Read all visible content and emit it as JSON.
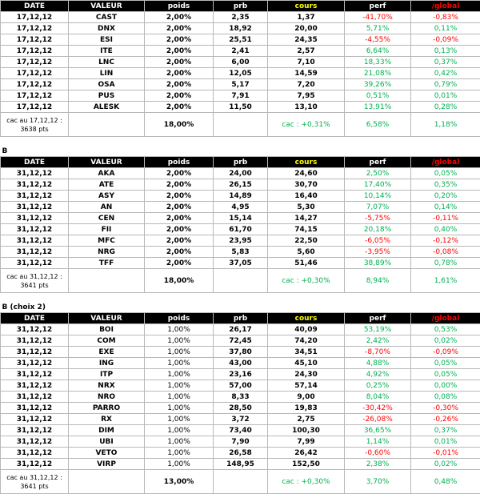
{
  "headers": [
    "DATE",
    "VALEUR",
    "poids",
    "prb",
    "cours",
    "perf",
    "/global"
  ],
  "sections": [
    {
      "title": "",
      "rows": [
        [
          "17,12,12",
          "CAST",
          "2,00%",
          "2,35",
          "1,37",
          "-41,70%",
          "-0,83%"
        ],
        [
          "17,12,12",
          "DNX",
          "2,00%",
          "18,92",
          "20,00",
          "5,71%",
          "0,11%"
        ],
        [
          "17,12,12",
          "ESI",
          "2,00%",
          "25,51",
          "24,35",
          "-4,55%",
          "-0,09%"
        ],
        [
          "17,12,12",
          "ITE",
          "2,00%",
          "2,41",
          "2,57",
          "6,64%",
          "0,13%"
        ],
        [
          "17,12,12",
          "LNC",
          "2,00%",
          "6,00",
          "7,10",
          "18,33%",
          "0,37%"
        ],
        [
          "17,12,12",
          "LIN",
          "2,00%",
          "12,05",
          "14,59",
          "21,08%",
          "0,42%"
        ],
        [
          "17,12,12",
          "OSA",
          "2,00%",
          "5,17",
          "7,20",
          "39,26%",
          "0,79%"
        ],
        [
          "17,12,12",
          "PUS",
          "2,00%",
          "7,91",
          "7,95",
          "0,51%",
          "0,01%"
        ],
        [
          "17,12,12",
          "ALESK",
          "2,00%",
          "11,50",
          "13,10",
          "13,91%",
          "0,28%"
        ]
      ],
      "summary": {
        "label": "cac au 17,12,12 : 3638 pts",
        "poids": "18,00%",
        "cac": "cac : +0,31%",
        "perf": "6,58%",
        "global": "1,18%"
      }
    },
    {
      "title": "B",
      "rows": [
        [
          "31,12,12",
          "AKA",
          "2,00%",
          "24,00",
          "24,60",
          "2,50%",
          "0,05%"
        ],
        [
          "31,12,12",
          "ATE",
          "2,00%",
          "26,15",
          "30,70",
          "17,40%",
          "0,35%"
        ],
        [
          "31,12,12",
          "ASY",
          "2,00%",
          "14,89",
          "16,40",
          "10,14%",
          "0,20%"
        ],
        [
          "31,12,12",
          "AN",
          "2,00%",
          "4,95",
          "5,30",
          "7,07%",
          "0,14%"
        ],
        [
          "31,12,12",
          "CEN",
          "2,00%",
          "15,14",
          "14,27",
          "-5,75%",
          "-0,11%"
        ],
        [
          "31,12,12",
          "FII",
          "2,00%",
          "61,70",
          "74,15",
          "20,18%",
          "0,40%"
        ],
        [
          "31,12,12",
          "MFC",
          "2,00%",
          "23,95",
          "22,50",
          "-6,05%",
          "-0,12%"
        ],
        [
          "31,12,12",
          "NRG",
          "2,00%",
          "5,83",
          "5,60",
          "-3,95%",
          "-0,08%"
        ],
        [
          "31,12,12",
          "TFF",
          "2,00%",
          "37,05",
          "51,46",
          "38,89%",
          "0,78%"
        ]
      ],
      "summary": {
        "label": "cac au 31,12,12 : 3641 pts",
        "poids": "18,00%",
        "cac": "cac : +0,30%",
        "perf": "8,94%",
        "global": "1,61%"
      }
    },
    {
      "title": "B (choix 2)",
      "rows": [
        [
          "31,12,12",
          "BOI",
          "1,00%",
          "26,17",
          "40,09",
          "53,19%",
          "0,53%"
        ],
        [
          "31,12,12",
          "COM",
          "1,00%",
          "72,45",
          "74,20",
          "2,42%",
          "0,02%"
        ],
        [
          "31,12,12",
          "EXE",
          "1,00%",
          "37,80",
          "34,51",
          "-8,70%",
          "-0,09%"
        ],
        [
          "31,12,12",
          "ING",
          "1,00%",
          "43,00",
          "45,10",
          "4,88%",
          "0,05%"
        ],
        [
          "31,12,12",
          "ITP",
          "1,00%",
          "23,16",
          "24,30",
          "4,92%",
          "0,05%"
        ],
        [
          "31,12,12",
          "NRX",
          "1,00%",
          "57,00",
          "57,14",
          "0,25%",
          "0,00%"
        ],
        [
          "31,12,12",
          "NRO",
          "1,00%",
          "8,33",
          "9,00",
          "8,04%",
          "0,08%"
        ],
        [
          "31,12,12",
          "PARRO",
          "1,00%",
          "28,50",
          "19,83",
          "-30,42%",
          "-0,30%"
        ],
        [
          "31,12,12",
          "RX",
          "1,00%",
          "3,72",
          "2,75",
          "-26,08%",
          "-0,26%"
        ],
        [
          "31,12,12",
          "DIM",
          "1,00%",
          "73,40",
          "100,30",
          "36,65%",
          "0,37%"
        ],
        [
          "31,12,12",
          "UBI",
          "1,00%",
          "7,90",
          "7,99",
          "1,14%",
          "0,01%"
        ],
        [
          "31,12,12",
          "VETO",
          "1,00%",
          "26,58",
          "26,42",
          "-0,60%",
          "-0,01%"
        ],
        [
          "31,12,12",
          "VIRP",
          "1,00%",
          "148,95",
          "152,50",
          "2,38%",
          "0,02%"
        ]
      ],
      "summary": {
        "label": "cac au 31,12,12 : 3641 pts",
        "poids": "13,00%",
        "cac": "cac : +0,30%",
        "perf": "3,70%",
        "global": "0,48%"
      }
    }
  ],
  "colors": {
    "positive": "#00b050",
    "negative": "#ff0000",
    "header_bg": "#000000",
    "cours_header": "#ffff00",
    "global_header": "#ff0000"
  }
}
